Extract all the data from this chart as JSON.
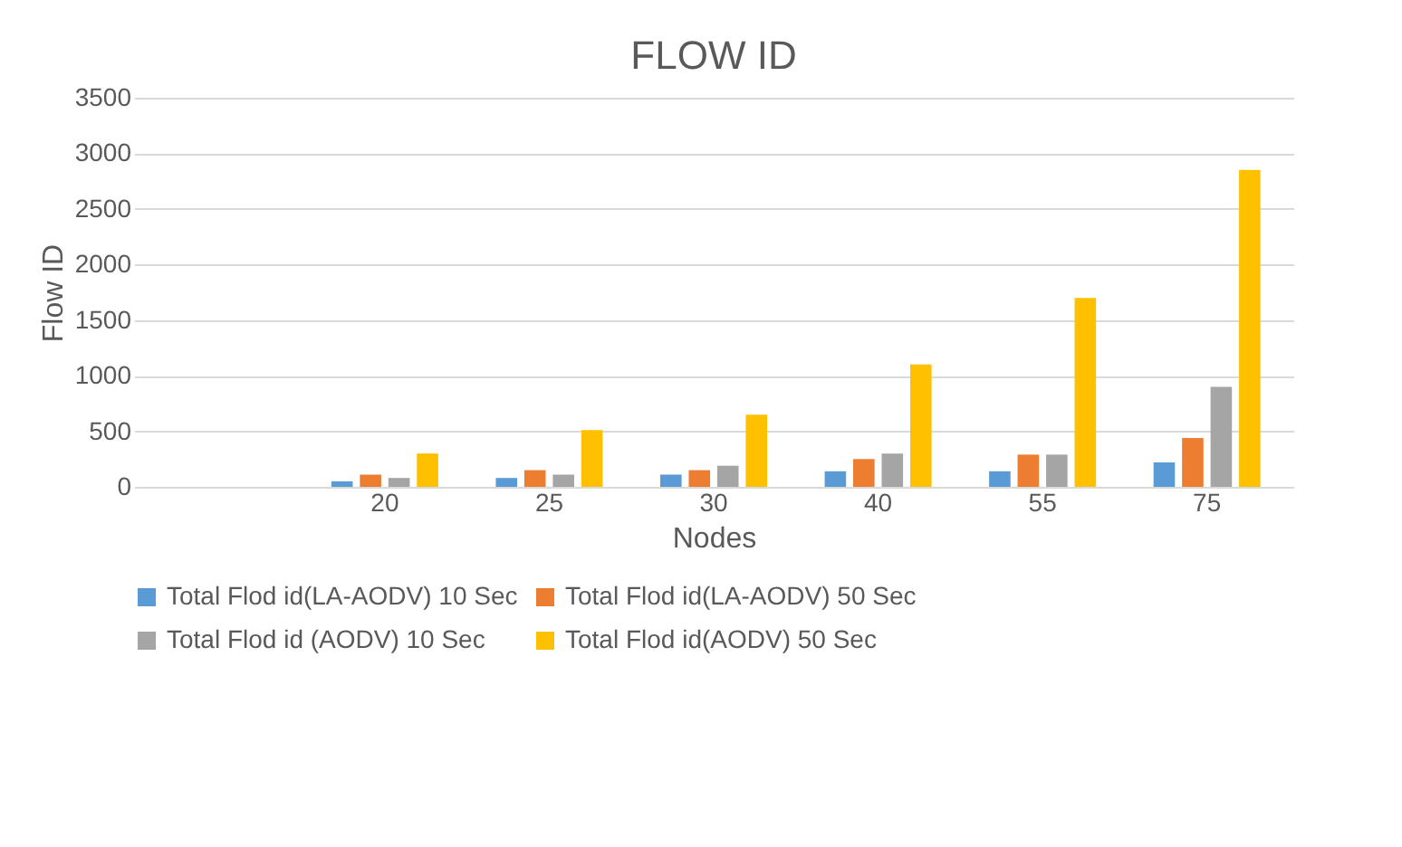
{
  "chart_data": {
    "type": "bar",
    "title": "FLOW ID",
    "xlabel": "Nodes",
    "ylabel": "Flow ID",
    "categories": [
      null,
      "20",
      "25",
      "30",
      "40",
      "55",
      "75"
    ],
    "series": [
      {
        "name": "Total Flod id(LA-AODV) 10 Sec",
        "color": "#5b9bd5",
        "values": [
          null,
          50,
          80,
          110,
          140,
          140,
          220
        ]
      },
      {
        "name": "Total Flod id(LA-AODV) 50 Sec",
        "color": "#ed7d31",
        "values": [
          null,
          110,
          150,
          150,
          250,
          290,
          440
        ]
      },
      {
        "name": "Total Flod id (AODV) 10 Sec",
        "color": "#a5a5a5",
        "values": [
          null,
          80,
          110,
          190,
          300,
          290,
          900
        ]
      },
      {
        "name": "Total Flod id(AODV) 50 Sec",
        "color": "#ffc000",
        "values": [
          null,
          300,
          510,
          650,
          1100,
          1700,
          2850
        ]
      }
    ],
    "ylim": [
      0,
      3500
    ],
    "yticks": [
      0,
      500,
      1000,
      1500,
      2000,
      2500,
      3000,
      3500
    ],
    "grid": "y",
    "legend": "bottom"
  }
}
